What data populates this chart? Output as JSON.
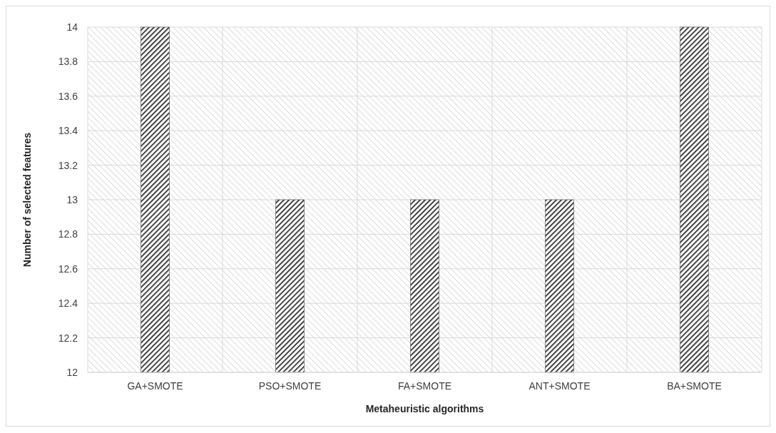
{
  "chart_data": {
    "type": "bar",
    "xlabel": "Metaheuristic algorithms",
    "ylabel": "Number of selected features",
    "categories": [
      "GA+SMOTE",
      "PSO+SMOTE",
      "FA+SMOTE",
      "ANT+SMOTE",
      "BA+SMOTE"
    ],
    "values": [
      14,
      13,
      13,
      13,
      14
    ],
    "color": "#262626",
    "ylim": [
      12,
      14
    ],
    "yticks": [
      12,
      {
        "value": 12.2,
        "label": "12.2"
      },
      {
        "value": 12.4,
        "label": "12.4"
      },
      {
        "value": 12.6,
        "label": "12.6"
      },
      {
        "value": 12.8,
        "label": "12.8"
      },
      13,
      {
        "value": 13.2,
        "label": "13.2"
      },
      {
        "value": 13.4,
        "label": "13.4"
      },
      {
        "value": 13.6,
        "label": "13.6"
      },
      {
        "value": 13.8,
        "label": "13.8"
      },
      14
    ],
    "grid": true
  }
}
